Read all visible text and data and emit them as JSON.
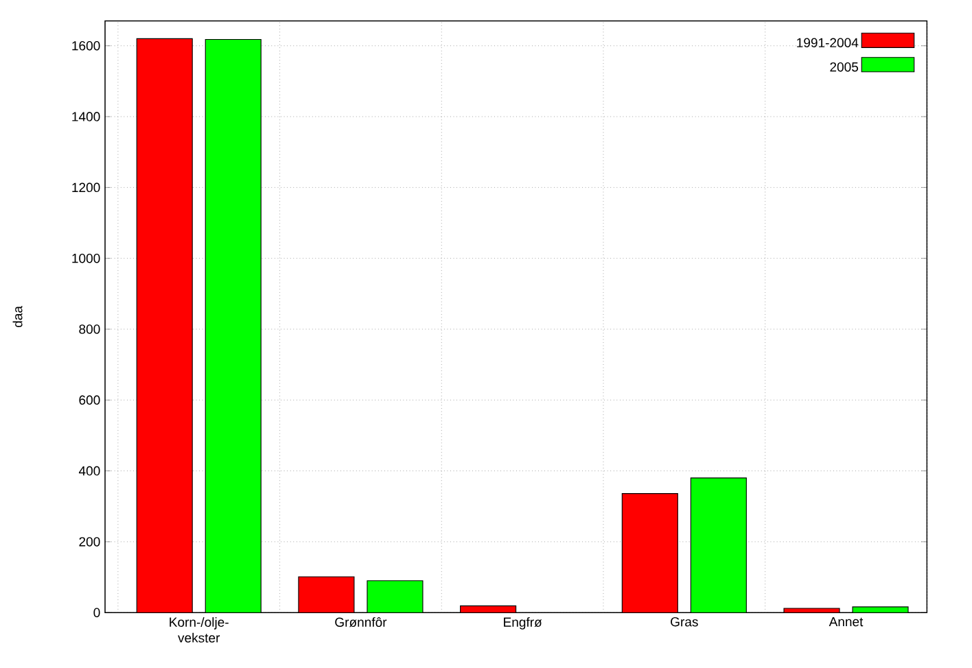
{
  "chart_data": {
    "type": "bar",
    "ylabel": "daa",
    "categories": [
      "Korn-/olje- vekster",
      "Grønnfôr",
      "Engfrø",
      "Gras",
      "Annet"
    ],
    "series": [
      {
        "name": "1991-2004",
        "color": "#ff0000",
        "values": [
          1620,
          101,
          19,
          336,
          12
        ]
      },
      {
        "name": "2005",
        "color": "#00ff00",
        "values": [
          1618,
          90,
          null,
          380,
          16
        ]
      }
    ],
    "ylim": [
      0,
      1670
    ],
    "yticks": [
      0,
      200,
      400,
      600,
      800,
      1000,
      1200,
      1400,
      1600
    ],
    "grid": true,
    "legend": "top right"
  }
}
